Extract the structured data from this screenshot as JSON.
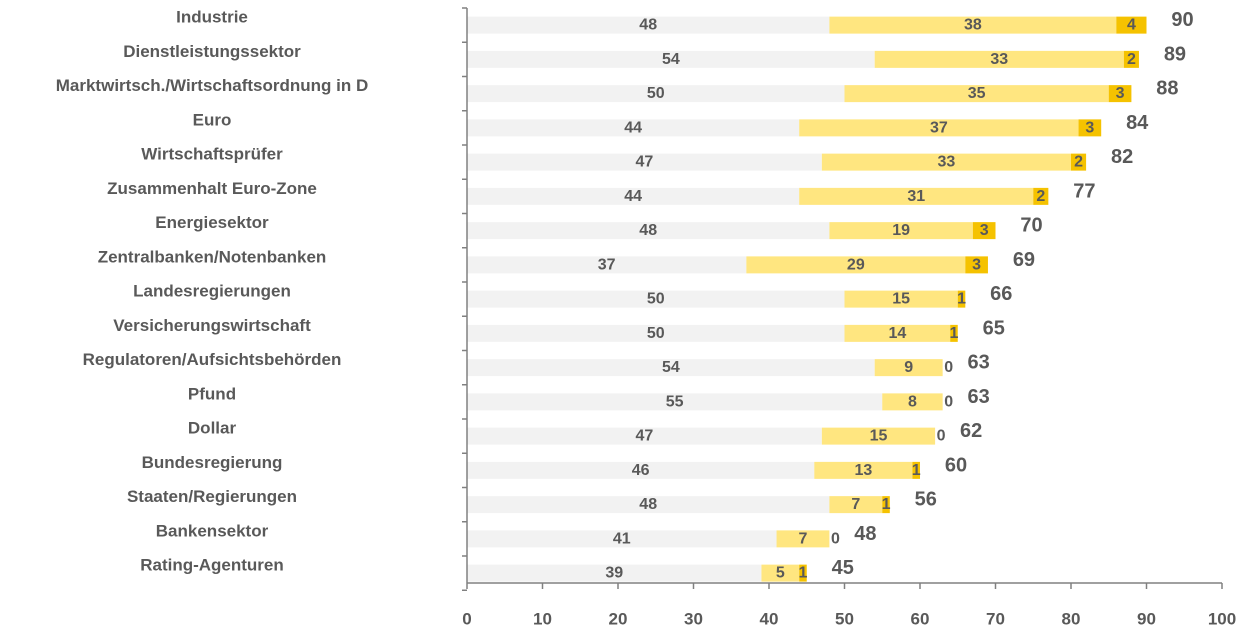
{
  "chart_data": {
    "type": "bar",
    "orientation": "horizontal",
    "stacked": true,
    "categories": [
      "Industrie",
      "Dienstleistungssektor",
      "Marktwirtsch./Wirtschaftsordnung in D",
      "Euro",
      "Wirtschaftsprüfer",
      "Zusammenhalt Euro-Zone",
      "Energiesektor",
      "Zentralbanken/Notenbanken",
      "Landesregierungen",
      "Versicherungswirtschaft",
      "Regulatoren/Aufsichtsbehörden",
      "Pfund",
      "Dollar",
      "Bundesregierung",
      "Staaten/Regierungen",
      "Bankensektor",
      "Rating-Agenturen"
    ],
    "series": [
      {
        "values": [
          48,
          54,
          50,
          44,
          47,
          44,
          48,
          37,
          50,
          50,
          54,
          55,
          47,
          46,
          48,
          41,
          39
        ],
        "color": "#f2f2f2"
      },
      {
        "values": [
          38,
          33,
          35,
          37,
          33,
          31,
          19,
          29,
          15,
          14,
          9,
          8,
          15,
          13,
          7,
          7,
          5
        ],
        "color": "#ffe680"
      },
      {
        "values": [
          4,
          2,
          3,
          3,
          2,
          2,
          3,
          3,
          1,
          1,
          0,
          0,
          0,
          1,
          1,
          0,
          1
        ],
        "color": "#f5c200"
      }
    ],
    "totals": [
      90,
      89,
      88,
      84,
      82,
      77,
      70,
      69,
      66,
      65,
      63,
      63,
      62,
      60,
      56,
      48,
      45
    ],
    "xlim": [
      0,
      100
    ],
    "xticks": [
      "0",
      "10",
      "20",
      "30",
      "40",
      "50",
      "60",
      "70",
      "80",
      "90",
      "100"
    ],
    "grid": false,
    "legend": "none",
    "label_color": "#595959",
    "axis_color": "#808080"
  }
}
